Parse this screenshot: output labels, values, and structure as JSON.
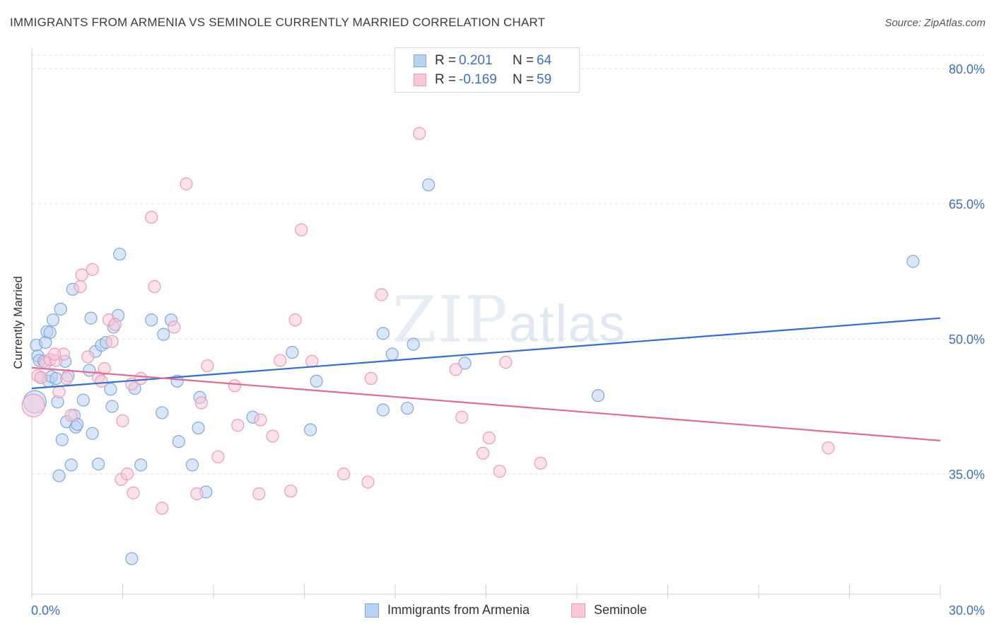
{
  "title": "IMMIGRANTS FROM ARMENIA VS SEMINOLE CURRENTLY MARRIED CORRELATION CHART",
  "source": "Source: ZipAtlas.com",
  "watermark": {
    "zip": "ZIP",
    "atlas": "atlas"
  },
  "legend_top": {
    "rows": [
      {
        "r_label": "R =",
        "r_value": "0.201",
        "n_label": "N =",
        "n_value": "64"
      },
      {
        "r_label": "R =",
        "r_value": "-0.169",
        "n_label": "N =",
        "n_value": "59"
      }
    ]
  },
  "legend_bottom": {
    "series1": "Immigrants from Armenia",
    "series2": "Seminole"
  },
  "colors": {
    "blue_fill": "#b9d2f2",
    "blue_stroke": "#7fa8dd",
    "blue_line": "#2f6fd0",
    "pink_fill": "#f8c8d8",
    "pink_stroke": "#ee9bb7",
    "pink_line": "#e06a97",
    "grid": "#dcdcdc",
    "tick_label": "#3a70c9"
  },
  "chart_data": {
    "type": "scatter",
    "title": "IMMIGRANTS FROM ARMENIA VS SEMINOLE CURRENTLY MARRIED CORRELATION CHART",
    "xlabel": "",
    "ylabel": "Currently Married",
    "xlim": [
      0,
      30
    ],
    "ylim": [
      20,
      83
    ],
    "x_tick_labels": [
      "0.0%",
      "30.0%"
    ],
    "y_ticks": [
      35,
      50,
      65,
      80
    ],
    "y_tick_labels": [
      "35.0%",
      "50.0%",
      "65.0%",
      "80.0%"
    ],
    "series": [
      {
        "name": "Immigrants from Armenia",
        "R": 0.201,
        "N": 64,
        "trend": {
          "x": [
            0,
            30
          ],
          "y": [
            44.5,
            52.3
          ]
        },
        "points": [
          [
            0.15,
            49.3
          ],
          [
            0.2,
            48.1
          ],
          [
            0.25,
            47.6
          ],
          [
            0.3,
            45.7
          ],
          [
            0.4,
            47.5
          ],
          [
            0.45,
            49.6
          ],
          [
            0.5,
            50.8
          ],
          [
            0.55,
            45.3
          ],
          [
            0.6,
            50.7
          ],
          [
            0.65,
            45.8
          ],
          [
            0.7,
            52.1
          ],
          [
            0.8,
            45.6
          ],
          [
            0.85,
            43.0
          ],
          [
            0.9,
            34.8
          ],
          [
            0.95,
            53.3
          ],
          [
            1.0,
            38.8
          ],
          [
            1.1,
            47.5
          ],
          [
            1.15,
            40.8
          ],
          [
            1.2,
            45.9
          ],
          [
            1.3,
            36.0
          ],
          [
            1.35,
            55.5
          ],
          [
            1.4,
            41.5
          ],
          [
            1.45,
            40.2
          ],
          [
            1.5,
            40.5
          ],
          [
            1.7,
            43.2
          ],
          [
            1.9,
            46.5
          ],
          [
            1.95,
            52.3
          ],
          [
            2.0,
            39.5
          ],
          [
            2.1,
            48.6
          ],
          [
            2.2,
            36.1
          ],
          [
            2.3,
            49.3
          ],
          [
            2.45,
            49.6
          ],
          [
            2.6,
            44.4
          ],
          [
            2.65,
            42.5
          ],
          [
            2.7,
            51.3
          ],
          [
            2.85,
            52.6
          ],
          [
            2.9,
            59.4
          ],
          [
            3.3,
            25.6
          ],
          [
            3.4,
            44.5
          ],
          [
            3.6,
            36.0
          ],
          [
            3.95,
            52.1
          ],
          [
            4.3,
            41.8
          ],
          [
            4.35,
            50.5
          ],
          [
            4.6,
            52.1
          ],
          [
            4.8,
            45.3
          ],
          [
            4.85,
            38.6
          ],
          [
            5.3,
            36.0
          ],
          [
            5.5,
            40.1
          ],
          [
            5.55,
            43.5
          ],
          [
            5.75,
            33.0
          ],
          [
            7.3,
            41.3
          ],
          [
            8.6,
            48.5
          ],
          [
            9.2,
            39.9
          ],
          [
            9.4,
            45.3
          ],
          [
            11.6,
            50.6
          ],
          [
            11.6,
            42.1
          ],
          [
            11.9,
            48.3
          ],
          [
            12.4,
            42.3
          ],
          [
            12.6,
            49.4
          ],
          [
            13.1,
            67.1
          ],
          [
            14.3,
            47.3
          ],
          [
            18.7,
            43.7
          ],
          [
            29.1,
            58.6
          ],
          [
            0.1,
            43.0
          ]
        ]
      },
      {
        "name": "Seminole",
        "R": -0.169,
        "N": 59,
        "trend": {
          "x": [
            0,
            30
          ],
          "y": [
            46.8,
            38.7
          ]
        },
        "points": [
          [
            0.05,
            42.6
          ],
          [
            0.2,
            45.9
          ],
          [
            0.3,
            45.7
          ],
          [
            0.45,
            47.3
          ],
          [
            0.6,
            47.7
          ],
          [
            0.8,
            47.6
          ],
          [
            0.9,
            44.1
          ],
          [
            1.05,
            48.3
          ],
          [
            1.15,
            45.6
          ],
          [
            1.3,
            41.5
          ],
          [
            1.6,
            55.8
          ],
          [
            1.65,
            57.1
          ],
          [
            1.85,
            48.0
          ],
          [
            2.0,
            57.7
          ],
          [
            2.2,
            45.7
          ],
          [
            2.3,
            45.3
          ],
          [
            2.4,
            46.7
          ],
          [
            2.55,
            52.1
          ],
          [
            2.65,
            49.7
          ],
          [
            2.75,
            51.6
          ],
          [
            2.95,
            34.4
          ],
          [
            3.0,
            40.9
          ],
          [
            3.15,
            35.0
          ],
          [
            3.3,
            45.0
          ],
          [
            3.35,
            32.9
          ],
          [
            3.6,
            45.6
          ],
          [
            3.95,
            63.5
          ],
          [
            4.05,
            55.8
          ],
          [
            4.3,
            31.2
          ],
          [
            4.7,
            51.3
          ],
          [
            5.1,
            67.2
          ],
          [
            5.45,
            32.8
          ],
          [
            5.6,
            42.9
          ],
          [
            5.8,
            47.0
          ],
          [
            6.15,
            36.9
          ],
          [
            6.7,
            44.8
          ],
          [
            6.8,
            40.4
          ],
          [
            7.5,
            32.8
          ],
          [
            7.55,
            41.0
          ],
          [
            7.95,
            39.2
          ],
          [
            8.2,
            47.6
          ],
          [
            8.55,
            33.1
          ],
          [
            8.7,
            52.1
          ],
          [
            8.9,
            62.1
          ],
          [
            9.25,
            47.5
          ],
          [
            10.3,
            35.0
          ],
          [
            11.1,
            34.1
          ],
          [
            11.2,
            45.6
          ],
          [
            11.55,
            54.9
          ],
          [
            12.8,
            72.8
          ],
          [
            14.0,
            46.6
          ],
          [
            14.2,
            41.3
          ],
          [
            14.9,
            37.3
          ],
          [
            15.1,
            39.0
          ],
          [
            15.45,
            35.3
          ],
          [
            15.65,
            47.4
          ],
          [
            16.8,
            36.2
          ],
          [
            26.3,
            37.9
          ],
          [
            0.75,
            48.3
          ]
        ]
      }
    ]
  }
}
